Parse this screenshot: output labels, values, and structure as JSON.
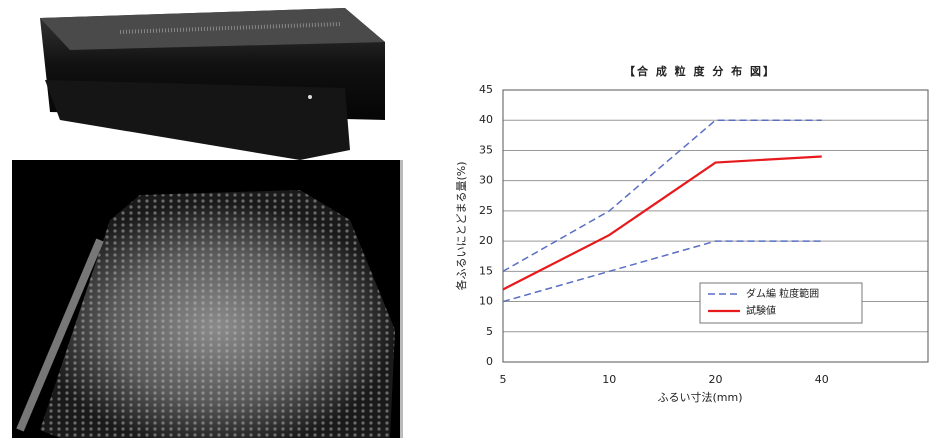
{
  "chart_data": {
    "type": "line",
    "title": "【合 成 粒 度 分 布 図】",
    "x_label": "ふるい寸法(mm)",
    "y_label": "各ふるいにとどまる量(%)",
    "categories": [
      "5",
      "10",
      "20",
      "40",
      null
    ],
    "series": [
      {
        "name": "ダム編 粒度範囲",
        "color": "#5a6fc4",
        "style": "dashed",
        "values": [
          15,
          25,
          40,
          40,
          null
        ],
        "lower": [
          10,
          15,
          20,
          20,
          null
        ]
      },
      {
        "name": "試験値",
        "color": "#e8191c",
        "style": "solid",
        "values": [
          12,
          21,
          33,
          34,
          null
        ]
      }
    ],
    "ylim": [
      0,
      45
    ],
    "yticks": [
      0,
      5,
      10,
      15,
      20,
      25,
      30,
      35,
      40,
      45
    ],
    "grid": true
  }
}
